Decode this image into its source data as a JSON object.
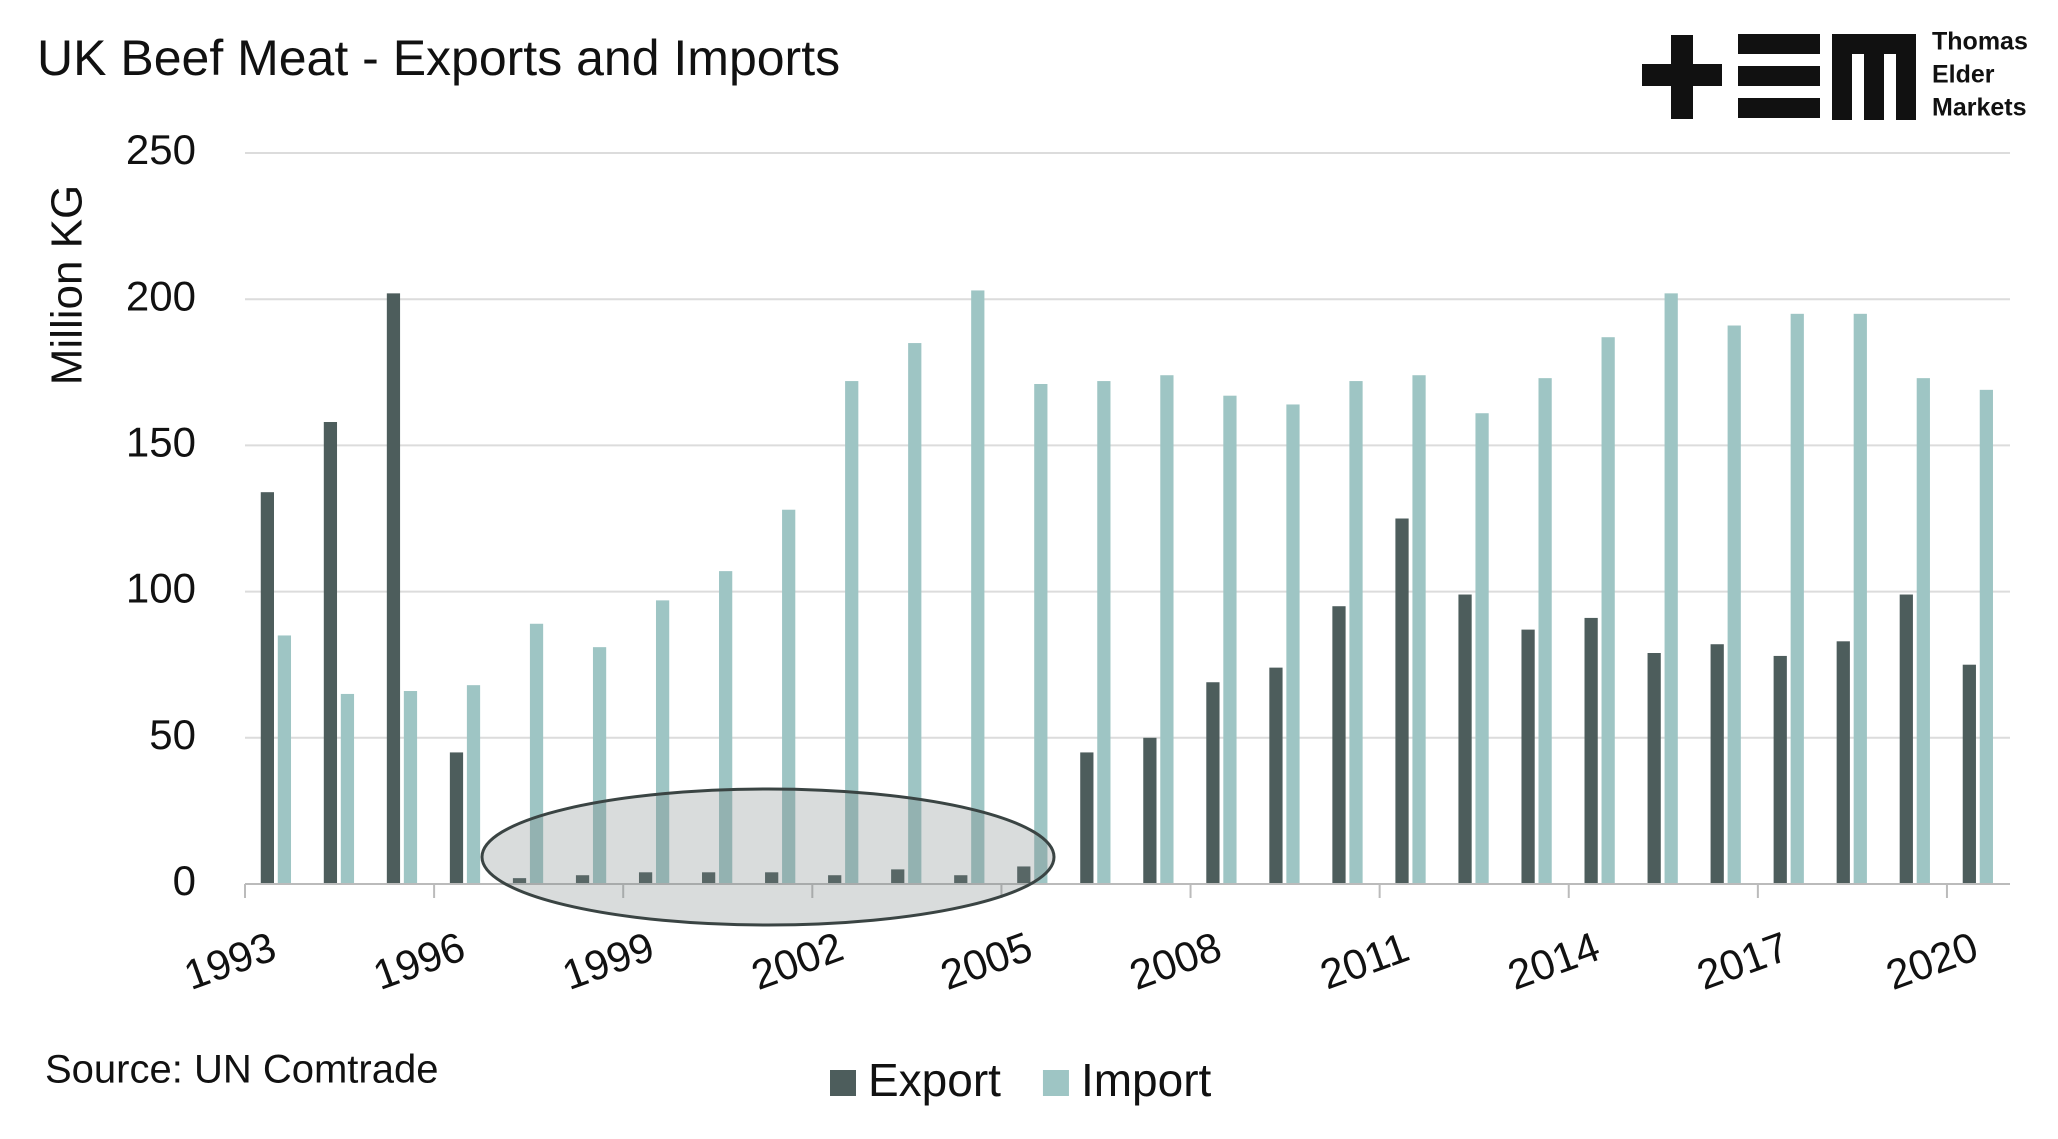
{
  "chart_data": {
    "type": "bar",
    "title": "UK Beef Meat - Exports and Imports",
    "y_label": "Million KG",
    "source": "Source: UN Comtrade",
    "logo": [
      "Thomas",
      "Elder",
      "Markets"
    ],
    "categories": [
      "1993",
      null,
      null,
      "1996",
      null,
      null,
      "1999",
      null,
      null,
      "2002",
      null,
      null,
      "2005",
      null,
      null,
      "2008",
      null,
      null,
      "2011",
      null,
      null,
      "2014",
      null,
      null,
      "2017",
      null,
      null,
      "2020"
    ],
    "series": [
      {
        "name": "Export",
        "color": "#4d5d5c",
        "values": [
          134,
          158,
          202,
          45,
          2,
          3,
          4,
          4,
          4,
          3,
          5,
          3,
          6,
          45,
          50,
          69,
          74,
          95,
          125,
          99,
          87,
          91,
          79,
          82,
          78,
          83,
          99,
          75
        ]
      },
      {
        "name": "Import",
        "color": "#9ec5c4",
        "values": [
          85,
          65,
          66,
          68,
          89,
          81,
          97,
          107,
          128,
          172,
          185,
          203,
          171,
          172,
          174,
          167,
          164,
          172,
          174,
          161,
          173,
          187,
          202,
          191,
          195,
          195,
          173,
          169
        ]
      }
    ],
    "ylim": [
      0,
      250
    ],
    "yticks": [
      0,
      50,
      100,
      150,
      200,
      250
    ],
    "grid": true
  }
}
